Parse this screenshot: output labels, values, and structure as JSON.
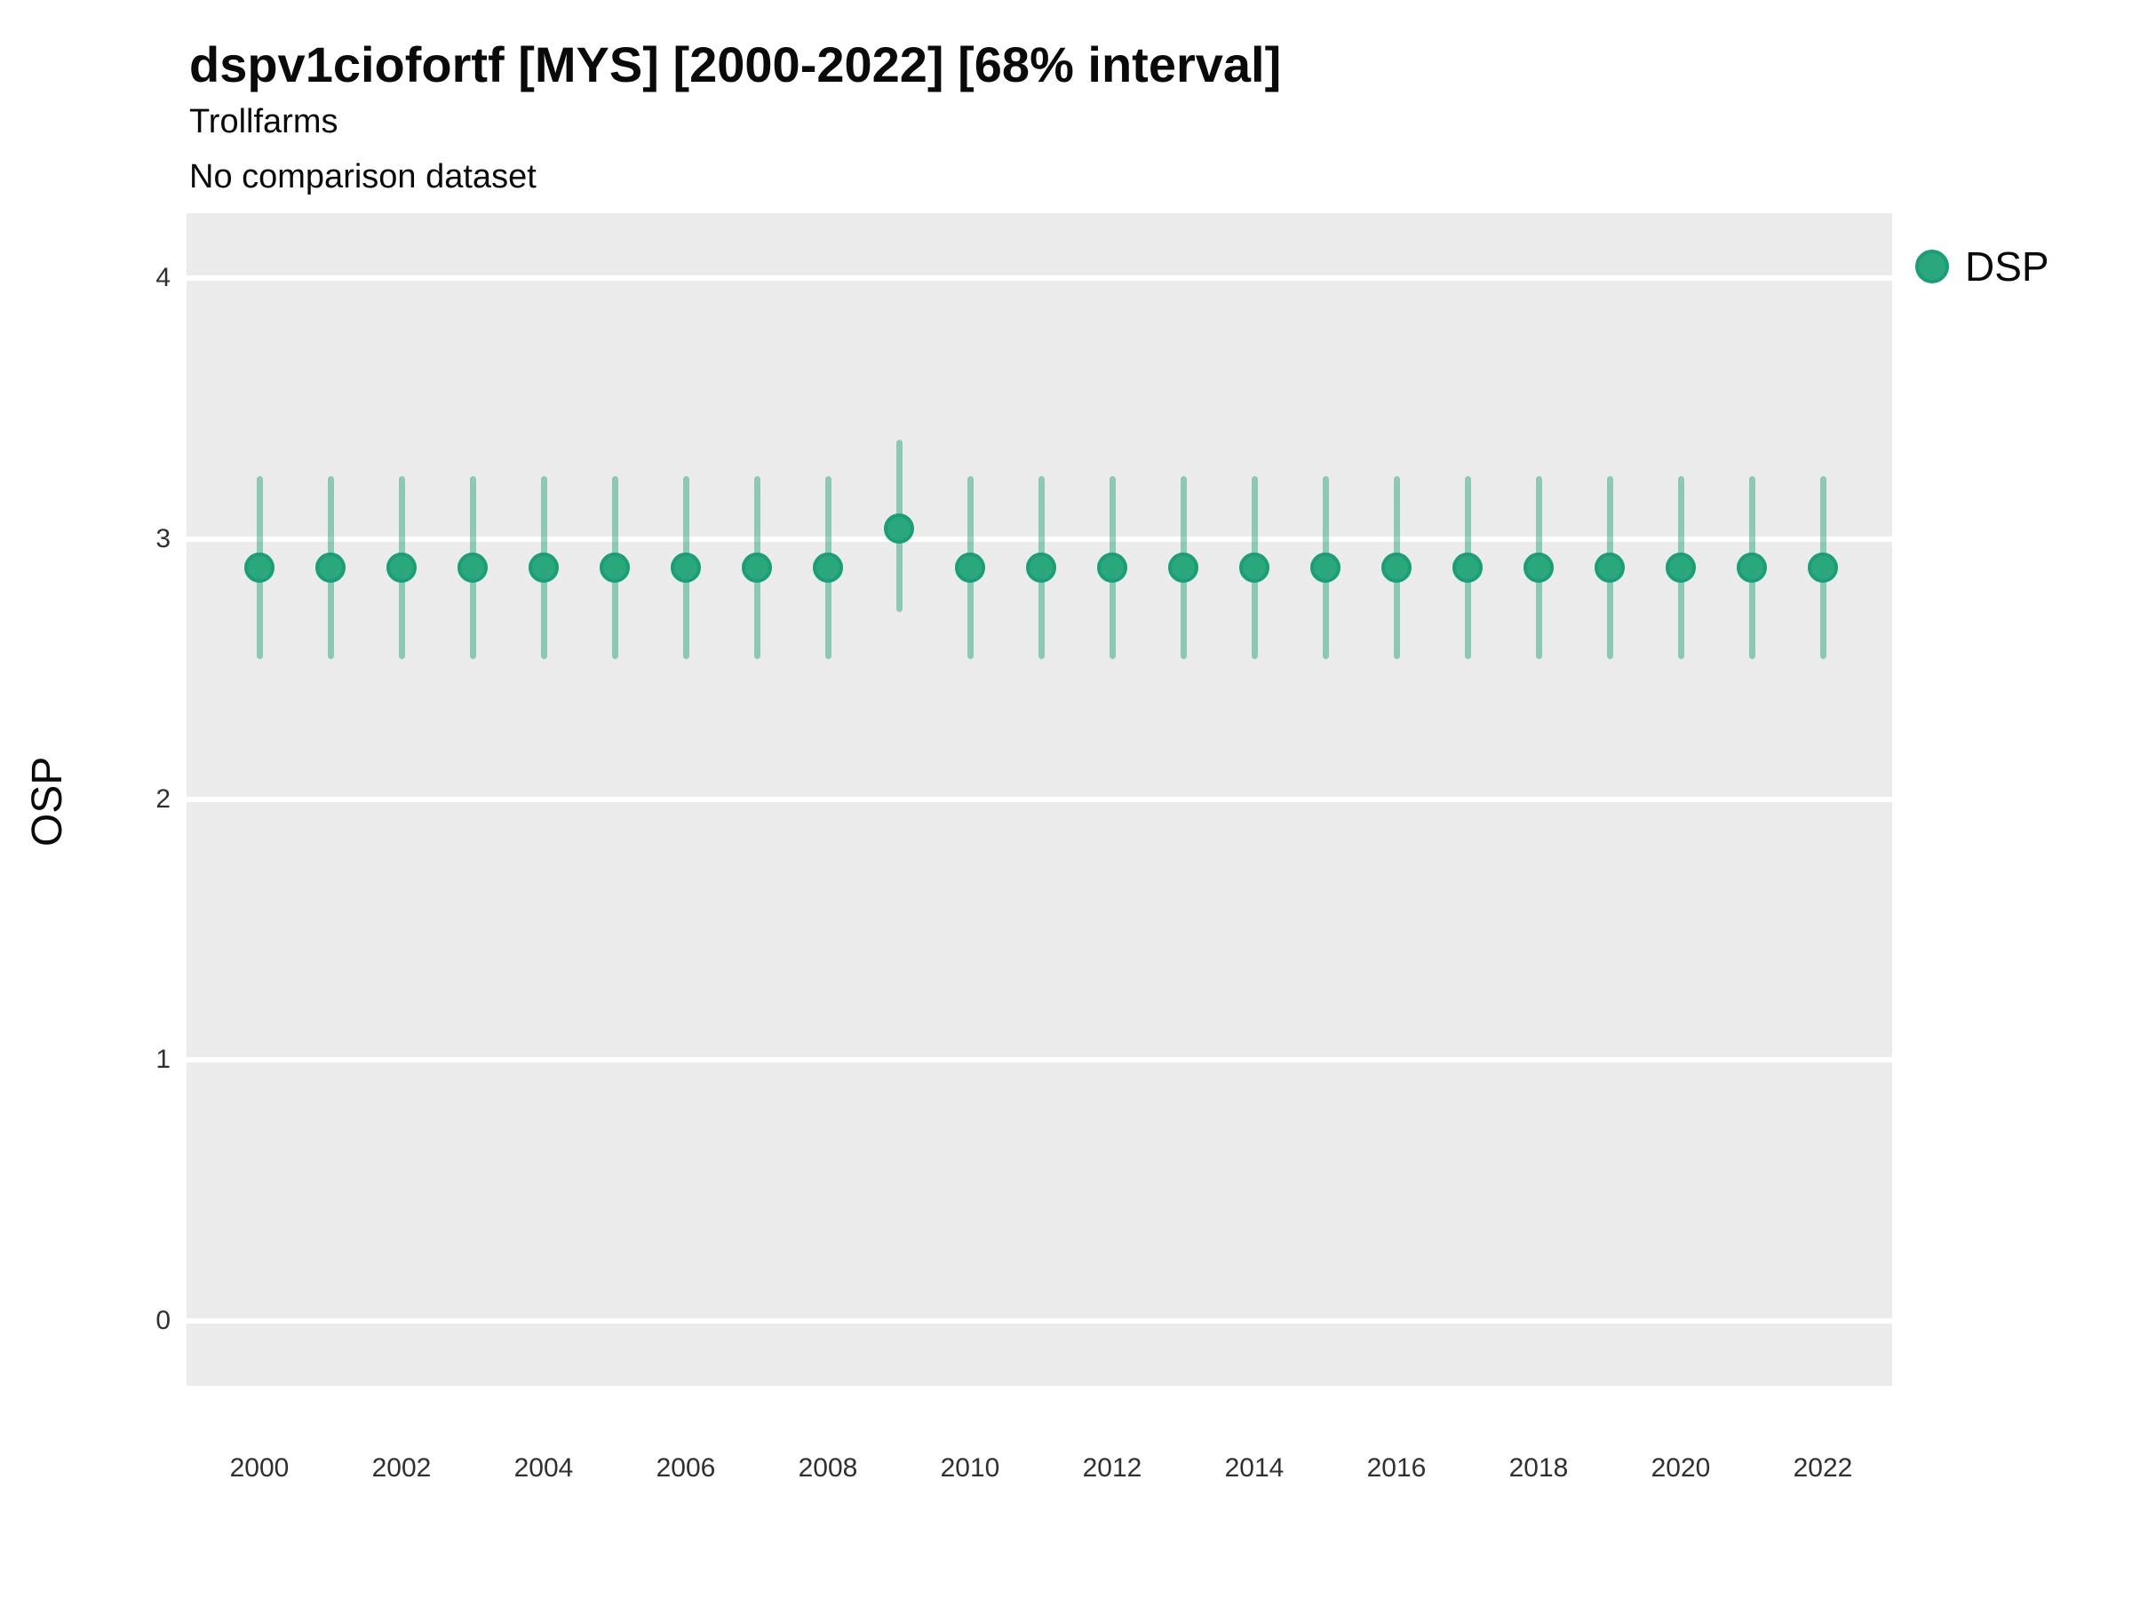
{
  "header": {
    "title": "dspv1ciofortf [MYS] [2000-2022] [68% interval]",
    "subtitle": "Trollfarms",
    "comparison_note": "No comparison dataset"
  },
  "legend": {
    "position": "right-top",
    "items": [
      {
        "label": "DSP",
        "marker": "point-circle-icon",
        "color": "#2aa77c"
      }
    ]
  },
  "axes": {
    "y": {
      "title": "OSP",
      "tick_labels": [
        "4",
        "3",
        "2",
        "1",
        "0"
      ]
    },
    "x": {
      "title": "",
      "tick_labels": [
        "2000",
        "2002",
        "2004",
        "2006",
        "2008",
        "2010",
        "2012",
        "2014",
        "2016",
        "2018",
        "2020",
        "2022"
      ]
    }
  },
  "chart_data": {
    "type": "scatter",
    "subtype": "pointrange",
    "title": "dspv1ciofortf [MYS] [2000-2022] [68% interval]",
    "subtitle": "Trollfarms",
    "note": "No comparison dataset",
    "interval": "68%",
    "xlabel": "",
    "ylabel": "OSP",
    "ylim": [
      -0.25,
      4.25
    ],
    "y_ticks": [
      0,
      1,
      2,
      3,
      4
    ],
    "x_ticks": [
      2000,
      2002,
      2004,
      2006,
      2008,
      2010,
      2012,
      2014,
      2016,
      2018,
      2020,
      2022
    ],
    "grid": "major-horizontal-only",
    "legend_position": "right-top",
    "x": [
      2000,
      2001,
      2002,
      2003,
      2004,
      2005,
      2006,
      2007,
      2008,
      2009,
      2010,
      2011,
      2012,
      2013,
      2014,
      2015,
      2016,
      2017,
      2018,
      2019,
      2020,
      2021,
      2022
    ],
    "series": [
      {
        "name": "DSP",
        "mean": [
          2.89,
          2.89,
          2.89,
          2.89,
          2.89,
          2.89,
          2.89,
          2.89,
          2.89,
          3.04,
          2.89,
          2.89,
          2.89,
          2.89,
          2.89,
          2.89,
          2.89,
          2.89,
          2.89,
          2.89,
          2.89,
          2.89,
          2.89
        ],
        "low": [
          2.54,
          2.54,
          2.54,
          2.54,
          2.54,
          2.54,
          2.54,
          2.54,
          2.54,
          2.72,
          2.54,
          2.54,
          2.54,
          2.54,
          2.54,
          2.54,
          2.54,
          2.54,
          2.54,
          2.54,
          2.54,
          2.54,
          2.54
        ],
        "high": [
          3.24,
          3.24,
          3.24,
          3.24,
          3.24,
          3.24,
          3.24,
          3.24,
          3.24,
          3.38,
          3.24,
          3.24,
          3.24,
          3.24,
          3.24,
          3.24,
          3.24,
          3.24,
          3.24,
          3.24,
          3.24,
          3.24,
          3.24
        ]
      }
    ]
  },
  "colors": {
    "point_fill": "#2aa77c",
    "point_border": "#1b9e77",
    "range_bar": "rgba(27,158,119,0.45)",
    "panel_background": "#ebebeb",
    "gridline": "#ffffff",
    "title_text": "#0a0a0a",
    "tick_text": "#303030"
  }
}
